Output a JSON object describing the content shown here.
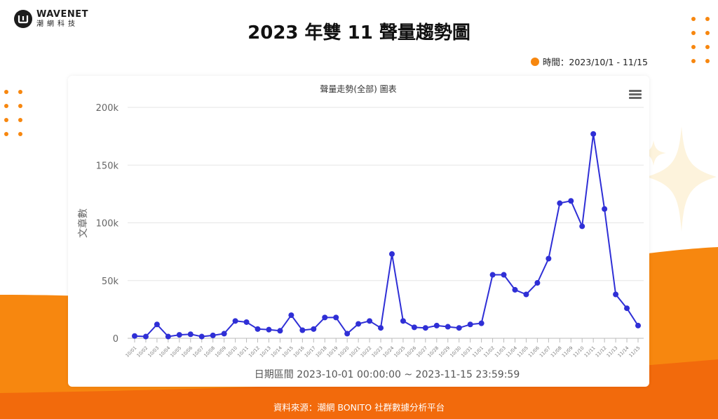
{
  "logo": {
    "brand": "WAVENET",
    "sub": "潮網科技"
  },
  "page_title": "2023 年雙 11 聲量趨勢圖",
  "period_label": "時間：2023/10/1 - 11/15",
  "source_label": "資料來源：潮網 BONITO 社群數據分析平台",
  "colors": {
    "accent": "#f7870f",
    "series": "#2f2fd6",
    "orange_dark": "#f26a0c"
  },
  "chart_data": {
    "type": "line",
    "title": "聲量走勢(全部) 圖表",
    "xlabel": "日期區間 2023-10-01 00:00:00 ~ 2023-11-15 23:59:59",
    "ylabel": "文章數",
    "ylim": [
      0,
      200000
    ],
    "y_ticks": [
      "0",
      "50k",
      "100k",
      "150k",
      "200k"
    ],
    "grid": true,
    "legend": "none",
    "categories": [
      "10/01",
      "10/02",
      "10/03",
      "10/04",
      "10/05",
      "10/06",
      "10/07",
      "10/08",
      "10/09",
      "10/10",
      "10/11",
      "10/12",
      "10/13",
      "10/14",
      "10/15",
      "10/16",
      "10/17",
      "10/18",
      "10/19",
      "10/20",
      "10/21",
      "10/22",
      "10/23",
      "10/24",
      "10/25",
      "10/26",
      "10/27",
      "10/28",
      "10/29",
      "10/30",
      "10/31",
      "11/01",
      "11/02",
      "11/03",
      "11/04",
      "11/05",
      "11/06",
      "11/07",
      "11/08",
      "11/09",
      "11/10",
      "11/11",
      "11/12",
      "11/13",
      "11/14",
      "11/15"
    ],
    "series": [
      {
        "values": [
          2000,
          1500,
          12000,
          1500,
          3000,
          3500,
          1500,
          2500,
          4000,
          15000,
          14000,
          8000,
          7500,
          6500,
          20000,
          7000,
          8000,
          18000,
          18000,
          4000,
          12500,
          15000,
          9000,
          73000,
          15000,
          9500,
          9000,
          11000,
          10000,
          9000,
          12000,
          13000,
          55000,
          55000,
          42000,
          38000,
          48000,
          69000,
          117000,
          119000,
          97000,
          177000,
          112000,
          38000,
          26000,
          11000
        ]
      }
    ]
  }
}
